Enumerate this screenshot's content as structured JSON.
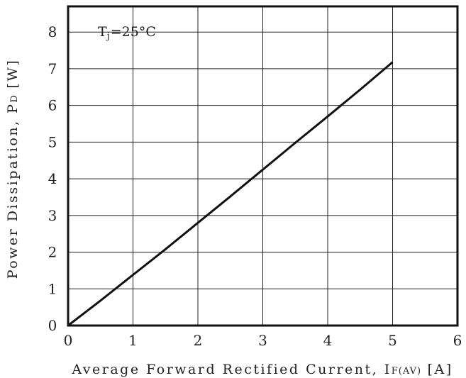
{
  "chart_data": {
    "type": "line",
    "annotation": {
      "main": "T",
      "sub": "j",
      "rest": "=25°C"
    },
    "xlabel": {
      "main": "Average Forward Rectified Current, I",
      "sub": "F(AV)",
      "unit": " [A]"
    },
    "ylabel": {
      "main": "Power Dissipation, P",
      "sub": "D",
      "unit": " [W]"
    },
    "xlim": [
      0,
      6
    ],
    "ylim": [
      0,
      8.7
    ],
    "xticks": [
      "0",
      "1",
      "2",
      "3",
      "4",
      "5",
      "6"
    ],
    "yticks": [
      "0",
      "1",
      "2",
      "3",
      "4",
      "5",
      "6",
      "7",
      "8"
    ],
    "grid": true,
    "series": [
      {
        "x": [
          0,
          0.5,
          1,
          1.5,
          2,
          2.5,
          3,
          3.5,
          4,
          4.5,
          5
        ],
        "y": [
          0,
          0.68,
          1.38,
          2.08,
          2.8,
          3.52,
          4.25,
          4.98,
          5.7,
          6.43,
          7.18
        ]
      }
    ]
  }
}
